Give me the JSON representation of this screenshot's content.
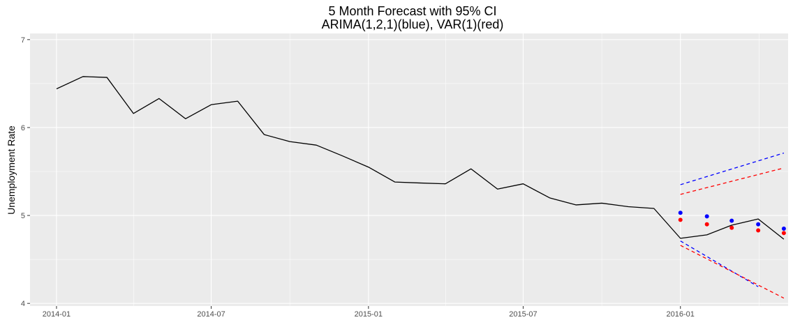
{
  "chart_data": {
    "type": "line",
    "title": "5 Month Forecast with 95% CI",
    "subtitle": "ARIMA(1,2,1)(blue), VAR(1)(red)",
    "xlabel": "",
    "ylabel": "Unemployment Rate",
    "ylim": [
      3.97,
      7.07
    ],
    "xlim": [
      "2013-12-01",
      "2016-05-06"
    ],
    "grid": true,
    "panel_background": "#ebebeb",
    "x_ticks": [
      "2014-01",
      "2014-07",
      "2015-01",
      "2015-07",
      "2016-01"
    ],
    "y_ticks": [
      4,
      5,
      6,
      7
    ],
    "y_tick_labels": [
      "4",
      "5",
      "6",
      "7"
    ],
    "series": [
      {
        "role": "observed",
        "style": "solid-line",
        "color": "#000000",
        "x": [
          "2014-01",
          "2014-02",
          "2014-03",
          "2014-04",
          "2014-05",
          "2014-06",
          "2014-07",
          "2014-08",
          "2014-09",
          "2014-10",
          "2014-11",
          "2014-12",
          "2015-01",
          "2015-02",
          "2015-03",
          "2015-04",
          "2015-05",
          "2015-06",
          "2015-07",
          "2015-08",
          "2015-09",
          "2015-10",
          "2015-11",
          "2015-12",
          "2016-01",
          "2016-02",
          "2016-03",
          "2016-04",
          "2016-05"
        ],
        "values": [
          6.44,
          6.58,
          6.57,
          6.16,
          6.33,
          6.1,
          6.26,
          6.3,
          5.92,
          5.84,
          5.8,
          5.68,
          5.55,
          5.38,
          5.37,
          5.36,
          5.53,
          5.3,
          5.36,
          5.2,
          5.12,
          5.14,
          5.1,
          5.08,
          4.74,
          4.78,
          4.89,
          4.96,
          4.73
        ]
      },
      {
        "role": "arima-forecast",
        "style": "points",
        "color": "#0000ff",
        "x": [
          "2016-01",
          "2016-02",
          "2016-03",
          "2016-04",
          "2016-05"
        ],
        "values": [
          5.03,
          4.99,
          4.94,
          4.9,
          4.85
        ]
      },
      {
        "role": "var-forecast",
        "style": "points",
        "color": "#ff0000",
        "x": [
          "2016-01",
          "2016-02",
          "2016-03",
          "2016-04",
          "2016-05"
        ],
        "values": [
          4.95,
          4.9,
          4.86,
          4.83,
          4.8
        ]
      },
      {
        "role": "arima-upper-95",
        "style": "dashed-line",
        "color": "#0000ff",
        "x": [
          "2016-01",
          "2016-05"
        ],
        "values": [
          5.35,
          5.71
        ]
      },
      {
        "role": "arima-lower-95",
        "style": "dashed-line",
        "color": "#0000ff",
        "x": [
          "2016-01",
          "2016-04"
        ],
        "values": [
          4.71,
          4.19
        ]
      },
      {
        "role": "var-upper-95",
        "style": "dashed-line",
        "color": "#ff0000",
        "x": [
          "2016-01",
          "2016-05"
        ],
        "values": [
          5.24,
          5.54
        ]
      },
      {
        "role": "var-lower-95",
        "style": "dashed-line",
        "color": "#ff0000",
        "x": [
          "2016-01",
          "2016-05"
        ],
        "values": [
          4.66,
          4.06
        ]
      }
    ]
  }
}
